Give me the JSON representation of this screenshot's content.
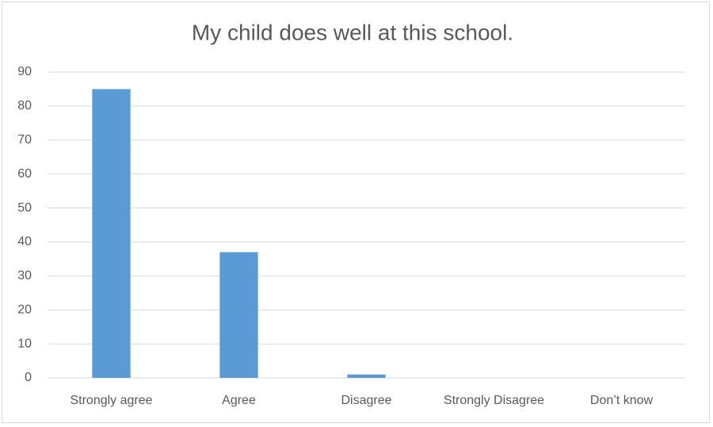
{
  "chart_data": {
    "type": "bar",
    "title": "My child does well at this school.",
    "categories": [
      "Strongly agree",
      "Agree",
      "Disagree",
      "Strongly Disagree",
      "Don’t know"
    ],
    "values": [
      85,
      37,
      1,
      0,
      0
    ],
    "color": "#5b9bd5",
    "ylim": [
      0,
      90
    ],
    "yticks": [
      0,
      10,
      20,
      30,
      40,
      50,
      60,
      70,
      80,
      90
    ],
    "grid": true
  }
}
